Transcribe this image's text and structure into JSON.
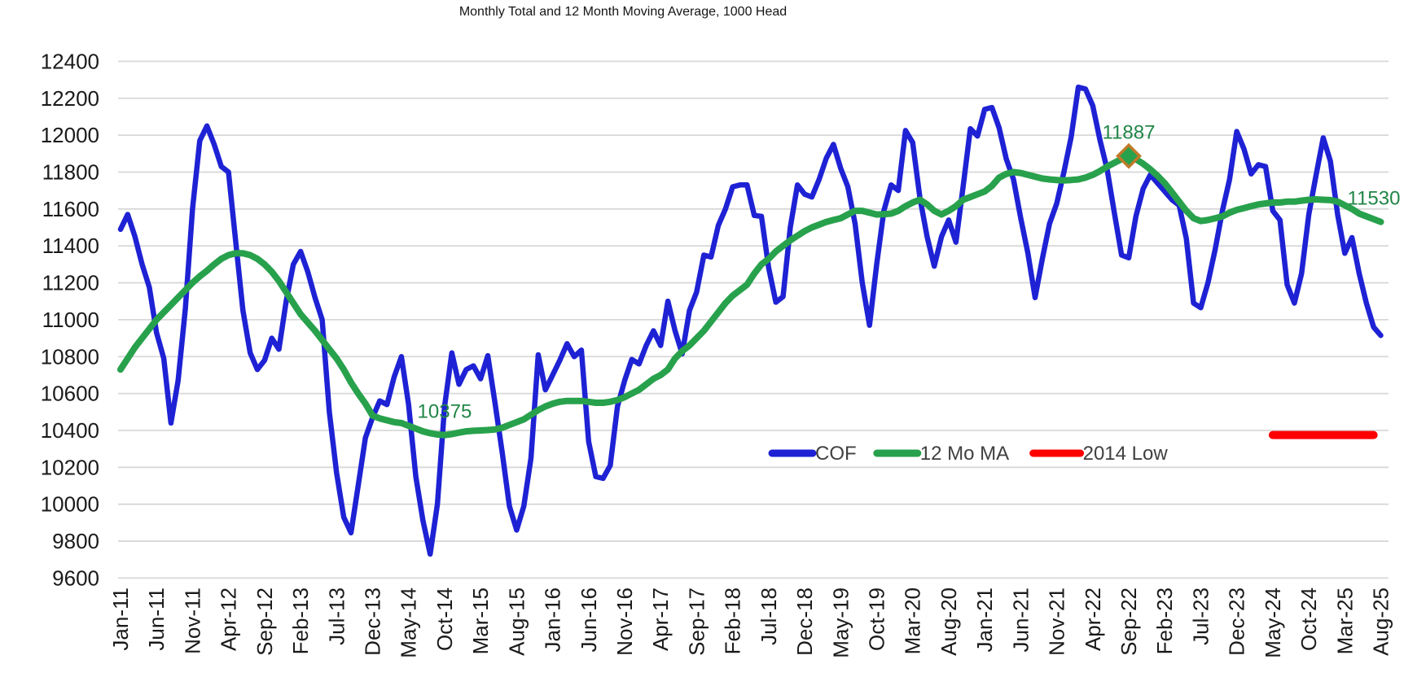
{
  "chart_data": {
    "type": "line",
    "title": "Monthly Total and 12 Month Moving Average, 1000 Head",
    "ylabel": "",
    "xlabel": "",
    "ylim": [
      9600,
      12400
    ],
    "y_tick_step": 200,
    "y_tick_labels": [
      "12400",
      "12200",
      "12000",
      "11800",
      "11600",
      "11400",
      "11200",
      "11000",
      "10800",
      "10600",
      "10400",
      "10200",
      "10000",
      "9800",
      "9600"
    ],
    "x_start": "Jan-11",
    "x_end": "Aug-25",
    "x_tick_every_months": 5,
    "x_tick_labels": [
      "Jan-11",
      "Jun-11",
      "Nov-11",
      "Apr-12",
      "Sep-12",
      "Feb-13",
      "Jul-13",
      "Dec-13",
      "May-14",
      "Oct-14",
      "Mar-15",
      "Aug-15",
      "Jan-16",
      "Jun-16",
      "Nov-16",
      "Apr-17",
      "Sep-17",
      "Feb-18",
      "Jul-18",
      "Dec-18",
      "May-19",
      "Oct-19",
      "Mar-20",
      "Aug-20",
      "Jan-21",
      "Jun-21",
      "Nov-21",
      "Apr-22",
      "Sep-22",
      "Feb-23",
      "Jul-23",
      "Dec-23",
      "May-24",
      "Oct-24",
      "Mar-25",
      "Aug-25"
    ],
    "grid": true,
    "legend_position": "inside-bottom-right",
    "colors": {
      "cof": "#1E22D4",
      "moving_average": "#28A14C",
      "low_line": "#FE0000",
      "annotation_text": "#218647",
      "marker_border": "#C07A28",
      "gridline": "#D8D8D8",
      "tick_text": "#1A1A1A",
      "legend_text": "#404040"
    },
    "series": [
      {
        "name": "COF",
        "color": "#1E22D4",
        "values": [
          11490,
          11570,
          11450,
          11300,
          11175,
          10930,
          10790,
          10440,
          10670,
          11060,
          11600,
          11970,
          12050,
          11950,
          11830,
          11800,
          11420,
          11050,
          10820,
          10730,
          10780,
          10900,
          10840,
          11100,
          11300,
          11370,
          11260,
          11120,
          11000,
          10500,
          10170,
          9930,
          9845,
          10100,
          10360,
          10470,
          10560,
          10540,
          10690,
          10800,
          10540,
          10150,
          9910,
          9730,
          10000,
          10530,
          10820,
          10650,
          10730,
          10750,
          10680,
          10805,
          10550,
          10280,
          9990,
          9860,
          9990,
          10250,
          10810,
          10620,
          10700,
          10780,
          10870,
          10800,
          10835,
          10340,
          10150,
          10140,
          10210,
          10530,
          10670,
          10785,
          10760,
          10860,
          10940,
          10860,
          11100,
          10940,
          10815,
          11050,
          11150,
          11350,
          11340,
          11510,
          11600,
          11720,
          11730,
          11730,
          11565,
          11560,
          11280,
          11095,
          11125,
          11500,
          11730,
          11680,
          11665,
          11760,
          11875,
          11950,
          11820,
          11720,
          11520,
          11200,
          10970,
          11300,
          11590,
          11730,
          11700,
          12025,
          11960,
          11660,
          11450,
          11290,
          11450,
          11540,
          11420,
          11720,
          12035,
          11995,
          12140,
          12150,
          12040,
          11870,
          11760,
          11550,
          11360,
          11120,
          11330,
          11520,
          11630,
          11800,
          11990,
          12260,
          12250,
          12160,
          11975,
          11815,
          11580,
          11350,
          11335,
          11560,
          11710,
          11785,
          11740,
          11695,
          11650,
          11620,
          11440,
          11090,
          11065,
          11200,
          11380,
          11590,
          11760,
          12020,
          11925,
          11790,
          11840,
          11830,
          11590,
          11540,
          11190,
          11090,
          11250,
          11570,
          11780,
          11985,
          11860,
          11570,
          11360,
          11445,
          11250,
          11090,
          10960,
          10915
        ]
      },
      {
        "name": "12 Mo MA",
        "color": "#28A14C",
        "values": [
          10730,
          10790,
          10850,
          10900,
          10950,
          11000,
          11040,
          11080,
          11120,
          11160,
          11200,
          11235,
          11265,
          11300,
          11330,
          11350,
          11360,
          11360,
          11350,
          11330,
          11300,
          11260,
          11210,
          11150,
          11090,
          11030,
          10985,
          10940,
          10890,
          10840,
          10790,
          10730,
          10660,
          10600,
          10545,
          10480,
          10465,
          10455,
          10445,
          10440,
          10425,
          10410,
          10395,
          10385,
          10378,
          10375,
          10380,
          10388,
          10395,
          10398,
          10400,
          10402,
          10405,
          10415,
          10430,
          10445,
          10460,
          10485,
          10510,
          10530,
          10545,
          10555,
          10560,
          10560,
          10560,
          10555,
          10550,
          10550,
          10555,
          10565,
          10580,
          10600,
          10620,
          10650,
          10680,
          10700,
          10730,
          10790,
          10830,
          10860,
          10900,
          10940,
          10990,
          11040,
          11090,
          11130,
          11160,
          11190,
          11250,
          11300,
          11330,
          11370,
          11400,
          11430,
          11455,
          11480,
          11500,
          11515,
          11530,
          11540,
          11550,
          11570,
          11590,
          11590,
          11580,
          11570,
          11572,
          11575,
          11590,
          11615,
          11635,
          11650,
          11625,
          11590,
          11570,
          11590,
          11615,
          11650,
          11665,
          11680,
          11695,
          11725,
          11770,
          11790,
          11800,
          11795,
          11785,
          11775,
          11765,
          11760,
          11757,
          11755,
          11757,
          11760,
          11770,
          11785,
          11805,
          11830,
          11850,
          11870,
          11887,
          11870,
          11845,
          11815,
          11780,
          11740,
          11690,
          11640,
          11590,
          11550,
          11535,
          11540,
          11550,
          11560,
          11580,
          11595,
          11605,
          11615,
          11625,
          11630,
          11635,
          11635,
          11640,
          11640,
          11645,
          11650,
          11652,
          11650,
          11648,
          11640,
          11620,
          11600,
          11575,
          11560,
          11545,
          11530
        ]
      },
      {
        "name": "2014 Low",
        "color": "#FE0000",
        "value": 10375,
        "start_month": "May-24",
        "start_index": 160,
        "end_month": "Jul-25",
        "end_index": 174
      }
    ],
    "annotations": [
      {
        "text": "11887",
        "series": "12 Mo MA",
        "month": "Sep-22",
        "month_index": 140,
        "value": 11887,
        "marker": "diamond"
      },
      {
        "text": "10375",
        "series": "12 Mo MA",
        "month": "Oct-14",
        "month_index": 45,
        "value": 10375,
        "marker": "none"
      },
      {
        "text": "11530",
        "series": "12 Mo MA",
        "month": "Aug-25",
        "month_index": 175,
        "value": 11530,
        "marker": "none"
      }
    ],
    "legend": [
      {
        "label": "COF",
        "color": "#1E22D4"
      },
      {
        "label": "12 Mo MA",
        "color": "#28A14C"
      },
      {
        "label": "2014 Low",
        "color": "#FE0000"
      }
    ]
  }
}
